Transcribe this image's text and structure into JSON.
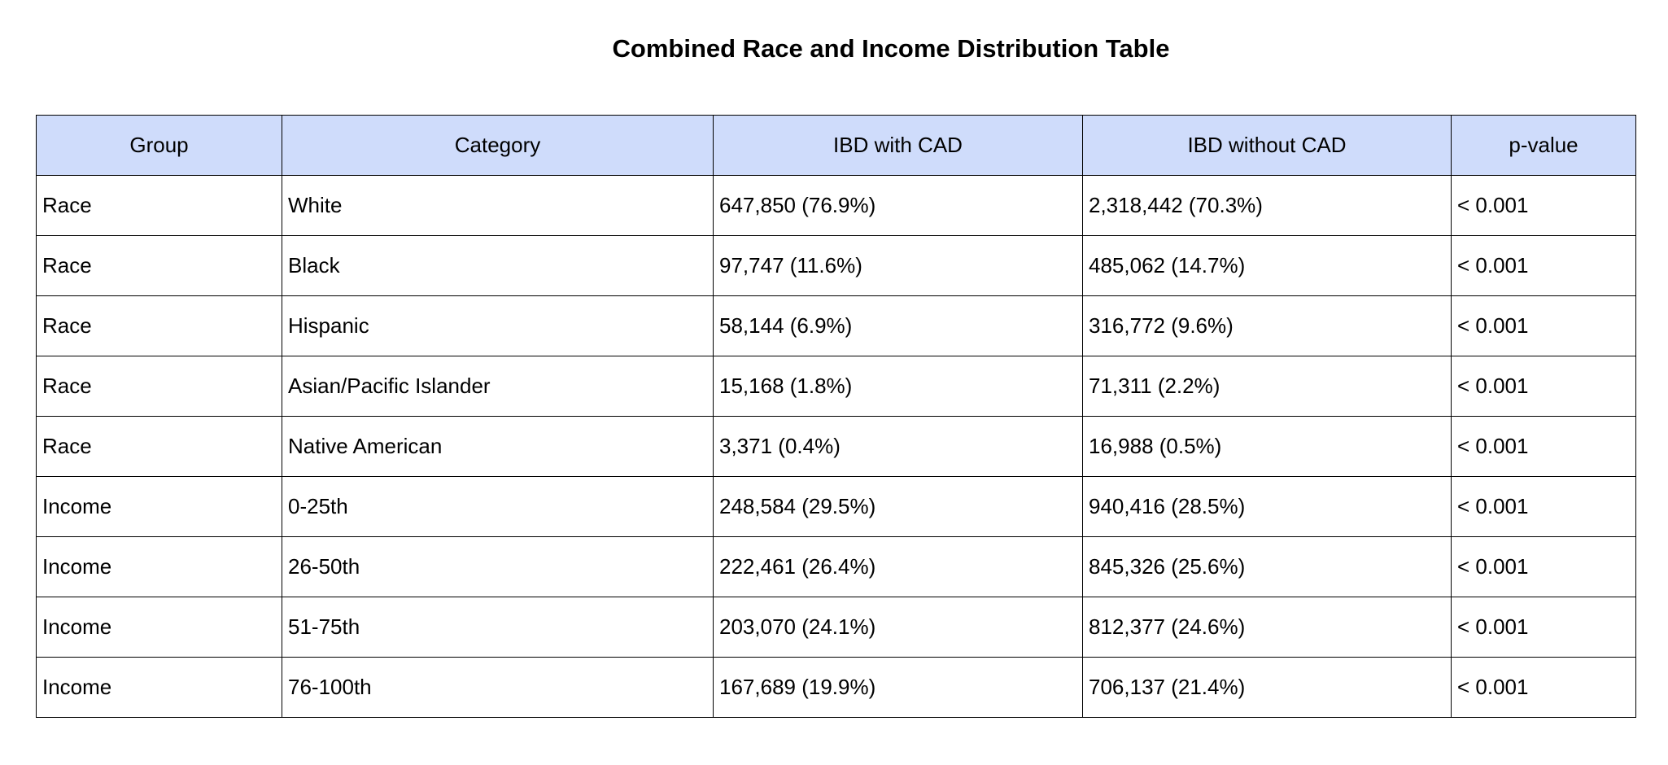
{
  "chart_data": {
    "type": "table",
    "title": "Combined Race and Income Distribution Table",
    "columns": [
      "Group",
      "Category",
      "IBD with CAD",
      "IBD without CAD",
      "p-value"
    ],
    "rows": [
      [
        "Race",
        "White",
        "647,850 (76.9%)",
        "2,318,442 (70.3%)",
        "< 0.001"
      ],
      [
        "Race",
        "Black",
        "97,747 (11.6%)",
        "485,062 (14.7%)",
        "< 0.001"
      ],
      [
        "Race",
        "Hispanic",
        "58,144 (6.9%)",
        "316,772 (9.6%)",
        "< 0.001"
      ],
      [
        "Race",
        "Asian/Pacific Islander",
        "15,168 (1.8%)",
        "71,311 (2.2%)",
        "< 0.001"
      ],
      [
        "Race",
        "Native American",
        "3,371 (0.4%)",
        "16,988 (0.5%)",
        "< 0.001"
      ],
      [
        "Income",
        "0-25th",
        "248,584 (29.5%)",
        "940,416 (28.5%)",
        "< 0.001"
      ],
      [
        "Income",
        "26-50th",
        "222,461 (26.4%)",
        "845,326 (25.6%)",
        "< 0.001"
      ],
      [
        "Income",
        "51-75th",
        "203,070 (24.1%)",
        "812,377 (24.6%)",
        "< 0.001"
      ],
      [
        "Income",
        "76-100th",
        "167,689 (19.9%)",
        "706,137 (21.4%)",
        "< 0.001"
      ]
    ],
    "header_color": "#cfdcfb"
  }
}
